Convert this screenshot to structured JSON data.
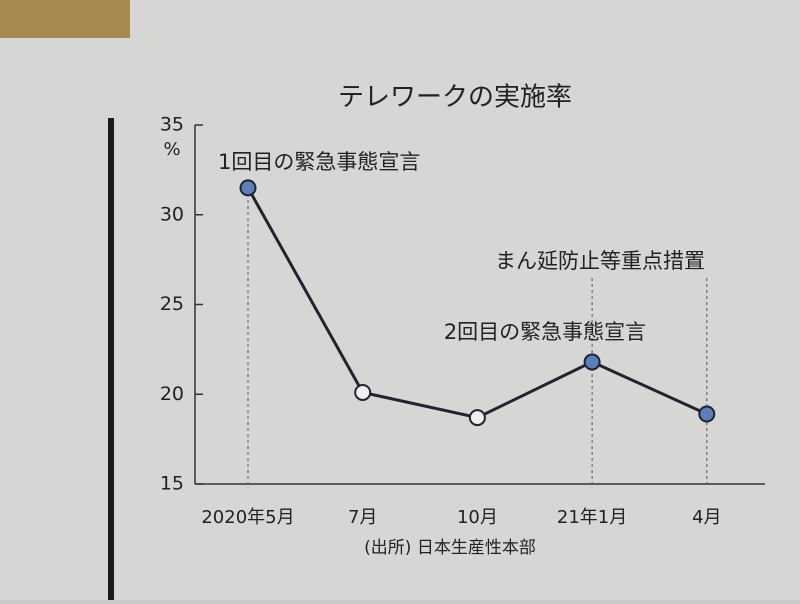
{
  "chart_data": {
    "type": "line",
    "title": "テレワークの実施率",
    "y_unit": "%",
    "categories": [
      "2020年5月",
      "7月",
      "10月",
      "21年1月",
      "4月"
    ],
    "series": [
      {
        "values": [
          31.5,
          20.1,
          18.7,
          21.8,
          18.9
        ],
        "color": "#1f2433",
        "marker_colors": [
          "#5d7fb8",
          "#efefef",
          "#efefef",
          "#5d7fb8",
          "#5d7fb8"
        ]
      }
    ],
    "annotations": [
      "1回目の緊急事態宣言",
      "まん延防止等重点措置",
      "2回目の緊急事態宣言"
    ],
    "ylim": [
      15,
      35
    ],
    "yticks": [
      15,
      20,
      25,
      30,
      35
    ],
    "source": "(出所) 日本生産性本部"
  }
}
